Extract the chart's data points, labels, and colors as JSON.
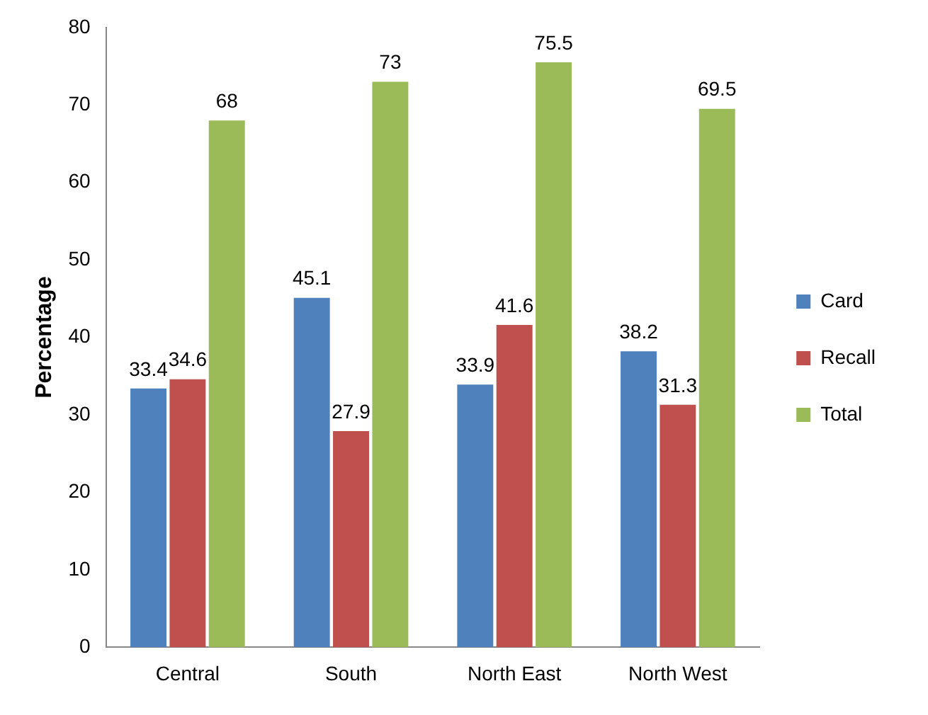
{
  "chart_data": {
    "type": "bar",
    "ylabel": "Percentage",
    "categories": [
      "Central",
      "South",
      "North East",
      "North West"
    ],
    "series": [
      {
        "name": "Card",
        "color": "#4f81bd",
        "values": [
          33.4,
          45.1,
          33.9,
          38.2
        ]
      },
      {
        "name": "Recall",
        "color": "#c0504d",
        "values": [
          34.6,
          27.9,
          41.6,
          31.3
        ]
      },
      {
        "name": "Total",
        "color": "#9bbb59",
        "values": [
          68,
          73,
          75.5,
          69.5
        ]
      }
    ],
    "ylim": [
      0,
      80
    ],
    "yticks": [
      0,
      10,
      20,
      30,
      40,
      50,
      60,
      70,
      80
    ],
    "grid": false,
    "legend": "right",
    "data_labels": true
  }
}
